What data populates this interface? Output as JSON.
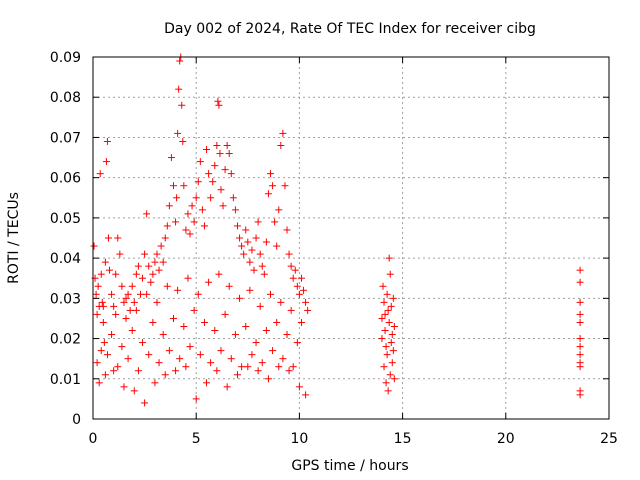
{
  "chart_data": {
    "type": "scatter",
    "title": "Day 002 of 2024, Rate Of TEC Index for receiver cibg",
    "xlabel": "GPS time / hours",
    "ylabel": "ROTI / TECUs",
    "xlim": [
      0,
      25
    ],
    "ylim": [
      0,
      0.09
    ],
    "xticks": [
      0,
      5,
      10,
      15,
      20,
      25
    ],
    "xtick_labels": [
      "0",
      "5",
      "10",
      "15",
      "20",
      "25"
    ],
    "yticks": [
      0,
      0.01,
      0.02,
      0.03,
      0.04,
      0.05,
      0.06,
      0.07,
      0.08,
      0.09
    ],
    "ytick_labels": [
      "0",
      "0.01",
      "0.02",
      "0.03",
      "0.04",
      "0.05",
      "0.06",
      "0.07",
      "0.08",
      "0.09"
    ],
    "grid": true,
    "marker": "plus",
    "marker_color": "#ff0000",
    "series": [
      {
        "name": "ROTI",
        "points": [
          [
            0.05,
            0.043
          ],
          [
            0.1,
            0.035
          ],
          [
            0.15,
            0.031
          ],
          [
            0.2,
            0.026
          ],
          [
            0.25,
            0.033
          ],
          [
            0.3,
            0.028
          ],
          [
            0.35,
            0.061
          ],
          [
            0.4,
            0.036
          ],
          [
            0.45,
            0.029
          ],
          [
            0.5,
            0.024
          ],
          [
            0.55,
            0.019
          ],
          [
            0.6,
            0.039
          ],
          [
            0.65,
            0.064
          ],
          [
            0.7,
            0.069
          ],
          [
            0.75,
            0.045
          ],
          [
            0.8,
            0.037
          ],
          [
            0.9,
            0.031
          ],
          [
            1.0,
            0.028
          ],
          [
            1.1,
            0.036
          ],
          [
            1.2,
            0.045
          ],
          [
            1.3,
            0.041
          ],
          [
            1.4,
            0.033
          ],
          [
            1.5,
            0.029
          ],
          [
            1.6,
            0.025
          ],
          [
            1.7,
            0.031
          ],
          [
            1.8,
            0.027
          ],
          [
            1.9,
            0.033
          ],
          [
            2.0,
            0.029
          ],
          [
            2.1,
            0.036
          ],
          [
            2.2,
            0.038
          ],
          [
            2.3,
            0.031
          ],
          [
            2.4,
            0.035
          ],
          [
            2.5,
            0.041
          ],
          [
            2.6,
            0.051
          ],
          [
            2.7,
            0.038
          ],
          [
            2.8,
            0.034
          ],
          [
            2.9,
            0.036
          ],
          [
            3.0,
            0.039
          ],
          [
            3.1,
            0.041
          ],
          [
            3.2,
            0.037
          ],
          [
            3.3,
            0.043
          ],
          [
            3.4,
            0.039
          ],
          [
            3.5,
            0.045
          ],
          [
            3.6,
            0.048
          ],
          [
            3.7,
            0.053
          ],
          [
            3.8,
            0.065
          ],
          [
            3.9,
            0.058
          ],
          [
            4.0,
            0.049
          ],
          [
            4.05,
            0.055
          ],
          [
            4.1,
            0.071
          ],
          [
            4.15,
            0.082
          ],
          [
            4.2,
            0.089
          ],
          [
            4.25,
            0.09
          ],
          [
            4.3,
            0.078
          ],
          [
            4.35,
            0.069
          ],
          [
            4.4,
            0.058
          ],
          [
            4.5,
            0.047
          ],
          [
            4.6,
            0.051
          ],
          [
            4.7,
            0.046
          ],
          [
            4.8,
            0.053
          ],
          [
            4.9,
            0.049
          ],
          [
            5.0,
            0.055
          ],
          [
            5.1,
            0.059
          ],
          [
            5.2,
            0.064
          ],
          [
            5.3,
            0.052
          ],
          [
            5.4,
            0.048
          ],
          [
            5.5,
            0.067
          ],
          [
            5.6,
            0.061
          ],
          [
            5.7,
            0.055
          ],
          [
            5.8,
            0.059
          ],
          [
            5.9,
            0.063
          ],
          [
            6.0,
            0.068
          ],
          [
            6.05,
            0.079
          ],
          [
            6.1,
            0.078
          ],
          [
            6.15,
            0.066
          ],
          [
            6.2,
            0.057
          ],
          [
            6.3,
            0.053
          ],
          [
            6.4,
            0.062
          ],
          [
            6.5,
            0.068
          ],
          [
            6.6,
            0.066
          ],
          [
            6.7,
            0.061
          ],
          [
            6.8,
            0.055
          ],
          [
            6.9,
            0.052
          ],
          [
            7.0,
            0.048
          ],
          [
            7.1,
            0.045
          ],
          [
            7.2,
            0.043
          ],
          [
            7.3,
            0.041
          ],
          [
            7.4,
            0.047
          ],
          [
            7.5,
            0.044
          ],
          [
            7.6,
            0.039
          ],
          [
            7.7,
            0.042
          ],
          [
            7.8,
            0.037
          ],
          [
            7.9,
            0.045
          ],
          [
            8.0,
            0.049
          ],
          [
            8.1,
            0.041
          ],
          [
            8.2,
            0.038
          ],
          [
            8.3,
            0.036
          ],
          [
            8.4,
            0.044
          ],
          [
            8.5,
            0.056
          ],
          [
            8.6,
            0.061
          ],
          [
            8.7,
            0.058
          ],
          [
            8.8,
            0.049
          ],
          [
            8.9,
            0.043
          ],
          [
            9.0,
            0.052
          ],
          [
            9.1,
            0.068
          ],
          [
            9.2,
            0.071
          ],
          [
            9.3,
            0.058
          ],
          [
            9.4,
            0.047
          ],
          [
            9.5,
            0.041
          ],
          [
            9.6,
            0.038
          ],
          [
            9.7,
            0.035
          ],
          [
            9.8,
            0.037
          ],
          [
            9.9,
            0.033
          ],
          [
            10.0,
            0.031
          ],
          [
            10.1,
            0.035
          ],
          [
            10.2,
            0.032
          ],
          [
            10.3,
            0.029
          ],
          [
            10.4,
            0.027
          ],
          [
            0.3,
            0.009
          ],
          [
            0.6,
            0.011
          ],
          [
            1.0,
            0.012
          ],
          [
            1.5,
            0.008
          ],
          [
            2.0,
            0.007
          ],
          [
            2.5,
            0.004
          ],
          [
            3.0,
            0.009
          ],
          [
            3.5,
            0.011
          ],
          [
            4.0,
            0.012
          ],
          [
            4.5,
            0.013
          ],
          [
            5.0,
            0.005
          ],
          [
            5.5,
            0.009
          ],
          [
            6.0,
            0.012
          ],
          [
            6.5,
            0.008
          ],
          [
            7.0,
            0.011
          ],
          [
            7.5,
            0.013
          ],
          [
            8.0,
            0.012
          ],
          [
            8.5,
            0.01
          ],
          [
            9.0,
            0.013
          ],
          [
            9.5,
            0.012
          ],
          [
            10.0,
            0.008
          ],
          [
            10.3,
            0.006
          ],
          [
            0.4,
            0.017
          ],
          [
            0.9,
            0.021
          ],
          [
            1.4,
            0.018
          ],
          [
            1.9,
            0.022
          ],
          [
            2.4,
            0.019
          ],
          [
            2.9,
            0.024
          ],
          [
            3.4,
            0.021
          ],
          [
            3.9,
            0.025
          ],
          [
            4.4,
            0.023
          ],
          [
            4.9,
            0.027
          ],
          [
            5.4,
            0.024
          ],
          [
            5.9,
            0.022
          ],
          [
            6.4,
            0.026
          ],
          [
            6.9,
            0.021
          ],
          [
            7.4,
            0.023
          ],
          [
            7.9,
            0.019
          ],
          [
            8.4,
            0.022
          ],
          [
            8.9,
            0.024
          ],
          [
            9.4,
            0.021
          ],
          [
            9.9,
            0.019
          ],
          [
            0.2,
            0.014
          ],
          [
            0.7,
            0.016
          ],
          [
            1.2,
            0.013
          ],
          [
            1.7,
            0.015
          ],
          [
            2.2,
            0.012
          ],
          [
            2.7,
            0.016
          ],
          [
            3.2,
            0.014
          ],
          [
            3.7,
            0.017
          ],
          [
            4.2,
            0.015
          ],
          [
            4.7,
            0.018
          ],
          [
            5.2,
            0.016
          ],
          [
            5.7,
            0.014
          ],
          [
            6.2,
            0.017
          ],
          [
            6.7,
            0.015
          ],
          [
            7.2,
            0.013
          ],
          [
            7.7,
            0.016
          ],
          [
            8.2,
            0.014
          ],
          [
            8.7,
            0.017
          ],
          [
            9.2,
            0.015
          ],
          [
            9.7,
            0.013
          ],
          [
            0.5,
            0.028
          ],
          [
            1.1,
            0.026
          ],
          [
            1.6,
            0.03
          ],
          [
            2.1,
            0.027
          ],
          [
            2.6,
            0.031
          ],
          [
            3.1,
            0.029
          ],
          [
            3.6,
            0.033
          ],
          [
            4.1,
            0.032
          ],
          [
            4.6,
            0.035
          ],
          [
            5.1,
            0.031
          ],
          [
            5.6,
            0.034
          ],
          [
            6.1,
            0.036
          ],
          [
            6.6,
            0.033
          ],
          [
            7.1,
            0.03
          ],
          [
            7.6,
            0.032
          ],
          [
            8.1,
            0.028
          ],
          [
            8.6,
            0.031
          ],
          [
            9.1,
            0.029
          ],
          [
            9.6,
            0.027
          ],
          [
            10.1,
            0.024
          ],
          [
            14.0,
            0.025
          ],
          [
            14.05,
            0.033
          ],
          [
            14.1,
            0.029
          ],
          [
            14.15,
            0.022
          ],
          [
            14.2,
            0.018
          ],
          [
            14.25,
            0.031
          ],
          [
            14.3,
            0.027
          ],
          [
            14.35,
            0.04
          ],
          [
            14.4,
            0.036
          ],
          [
            14.45,
            0.028
          ],
          [
            14.5,
            0.021
          ],
          [
            14.55,
            0.017
          ],
          [
            14.6,
            0.023
          ],
          [
            14.1,
            0.013
          ],
          [
            14.2,
            0.009
          ],
          [
            14.3,
            0.007
          ],
          [
            14.4,
            0.011
          ],
          [
            14.5,
            0.014
          ],
          [
            14.6,
            0.01
          ],
          [
            14.0,
            0.02
          ],
          [
            14.15,
            0.026
          ],
          [
            14.35,
            0.024
          ],
          [
            14.45,
            0.019
          ],
          [
            14.55,
            0.03
          ],
          [
            14.25,
            0.016
          ],
          [
            23.6,
            0.037
          ],
          [
            23.6,
            0.034
          ],
          [
            23.6,
            0.029
          ],
          [
            23.6,
            0.026
          ],
          [
            23.6,
            0.024
          ],
          [
            23.6,
            0.02
          ],
          [
            23.6,
            0.018
          ],
          [
            23.6,
            0.016
          ],
          [
            23.6,
            0.014
          ],
          [
            23.6,
            0.013
          ],
          [
            23.6,
            0.007
          ],
          [
            23.6,
            0.006
          ]
        ]
      }
    ]
  }
}
